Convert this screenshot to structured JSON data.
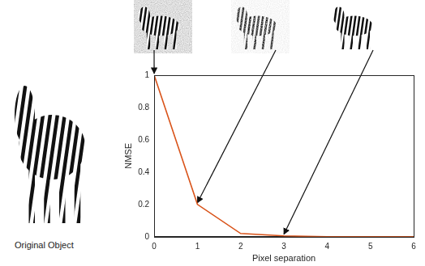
{
  "chart_data": {
    "type": "line",
    "x": [
      0,
      1,
      2,
      3,
      4,
      5,
      6
    ],
    "values": [
      1,
      0.2,
      0.02,
      0.005,
      0,
      0,
      0
    ],
    "color": "#d95319",
    "x_label": "Pixel separation",
    "y_label": "NMSE",
    "xlim": [
      0,
      6
    ],
    "xticks": [
      0,
      1,
      2,
      3,
      4,
      5,
      6
    ],
    "ylim": [
      0,
      1
    ],
    "yticks": [
      0,
      0.2,
      0.4,
      0.6,
      0.8,
      1
    ],
    "grid": false
  },
  "caption": "Original Object"
}
